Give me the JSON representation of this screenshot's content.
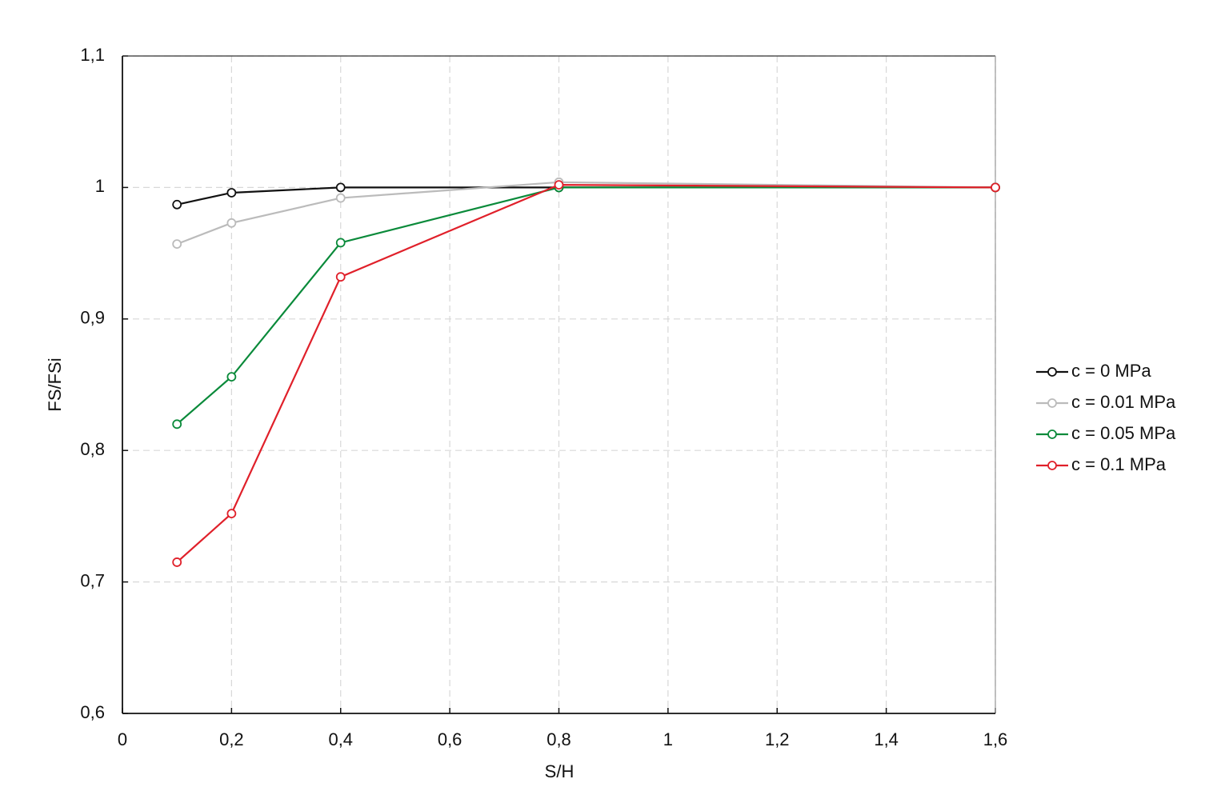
{
  "chart_data": {
    "type": "line",
    "x_label": "S/H",
    "y_label": "FS/FSi",
    "x": [
      0.1,
      0.2,
      0.4,
      0.8,
      1.6
    ],
    "series": [
      {
        "name": "c = 0 MPa",
        "color": "#111111",
        "values": [
          0.987,
          0.996,
          1.0,
          1.0,
          1.0
        ]
      },
      {
        "name": "c = 0.01 MPa",
        "color": "#bbbbbb",
        "values": [
          0.957,
          0.973,
          0.992,
          1.004,
          1.0
        ]
      },
      {
        "name": "c = 0.05 MPa",
        "color": "#0a8a3a",
        "values": [
          0.82,
          0.856,
          0.958,
          1.0,
          1.0
        ]
      },
      {
        "name": "c = 0.1 MPa",
        "color": "#e0202a",
        "values": [
          0.715,
          0.752,
          0.932,
          1.002,
          1.0
        ]
      }
    ],
    "xlim": [
      0,
      1.6
    ],
    "xticks": [
      0,
      {
        "value": 0.2,
        "label": "0,2"
      },
      {
        "value": 0.4,
        "label": "0,4"
      },
      {
        "value": 0.6,
        "label": "0,6"
      },
      {
        "value": 0.8,
        "label": "0,8"
      },
      1,
      {
        "value": 1.2,
        "label": "1,2"
      },
      {
        "value": 1.4,
        "label": "1,4"
      },
      {
        "value": 1.6,
        "label": "1,6"
      }
    ],
    "ylim": [
      0.6,
      1.1
    ],
    "yticks": [
      {
        "value": 0.6,
        "label": "0,6"
      },
      {
        "value": 0.7,
        "label": "0,7"
      },
      {
        "value": 0.8,
        "label": "0,8"
      },
      {
        "value": 0.9,
        "label": "0,9"
      },
      1,
      {
        "value": 1.1,
        "label": "1,1"
      }
    ],
    "grid": true,
    "legend": "right"
  }
}
